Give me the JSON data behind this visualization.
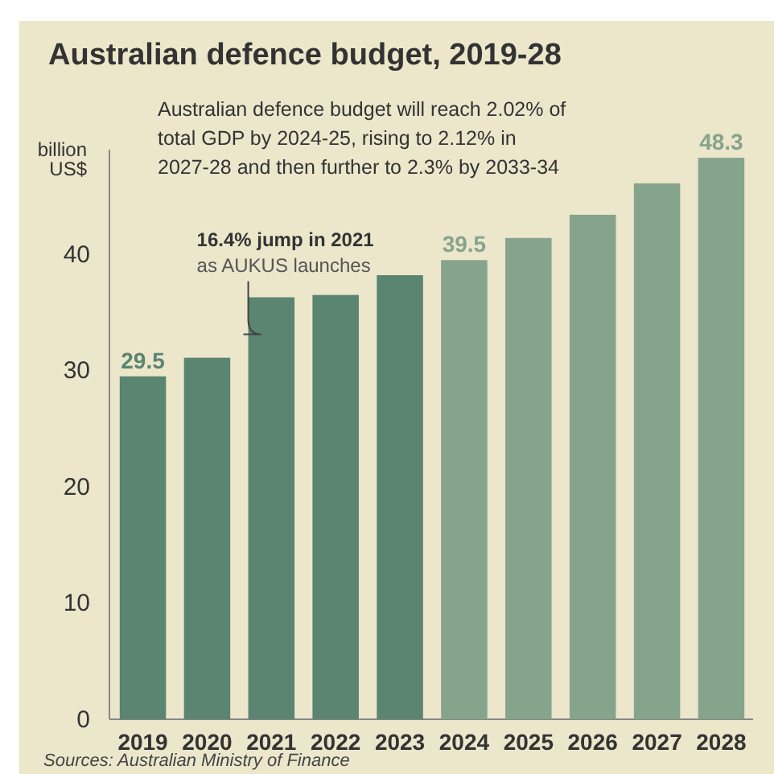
{
  "chart_data": {
    "type": "bar",
    "title": "Australian defence budget, 2019-28",
    "subtitle": "Australian defence budget will reach 2.02% of total GDP by 2024-25, rising to 2.12% in 2027-28 and then further to 2.3% by 2033-34",
    "ylabel": "billion US$",
    "categories": [
      "2019",
      "2020",
      "2021",
      "2022",
      "2023",
      "2024",
      "2025",
      "2026",
      "2027",
      "2028"
    ],
    "values": [
      29.5,
      31.1,
      36.3,
      36.5,
      38.2,
      39.5,
      41.4,
      43.4,
      46.1,
      48.3
    ],
    "colors": [
      "#5a8570",
      "#5a8570",
      "#5a8570",
      "#5a8570",
      "#5a8570",
      "#86a48c",
      "#86a48c",
      "#86a48c",
      "#86a48c",
      "#86a48c"
    ],
    "value_labels": [
      "29.5",
      null,
      null,
      null,
      null,
      "39.5",
      null,
      null,
      null,
      "48.3"
    ],
    "ylim": [
      0,
      49
    ],
    "yticks": [
      0,
      10,
      20,
      30,
      40
    ],
    "annotations": [
      {
        "text": "16.4% jump in 2021\nas AUKUS launches",
        "x": "2021",
        "y": 36.3
      },
      "Sources: Australian Ministry of Finance"
    ]
  }
}
